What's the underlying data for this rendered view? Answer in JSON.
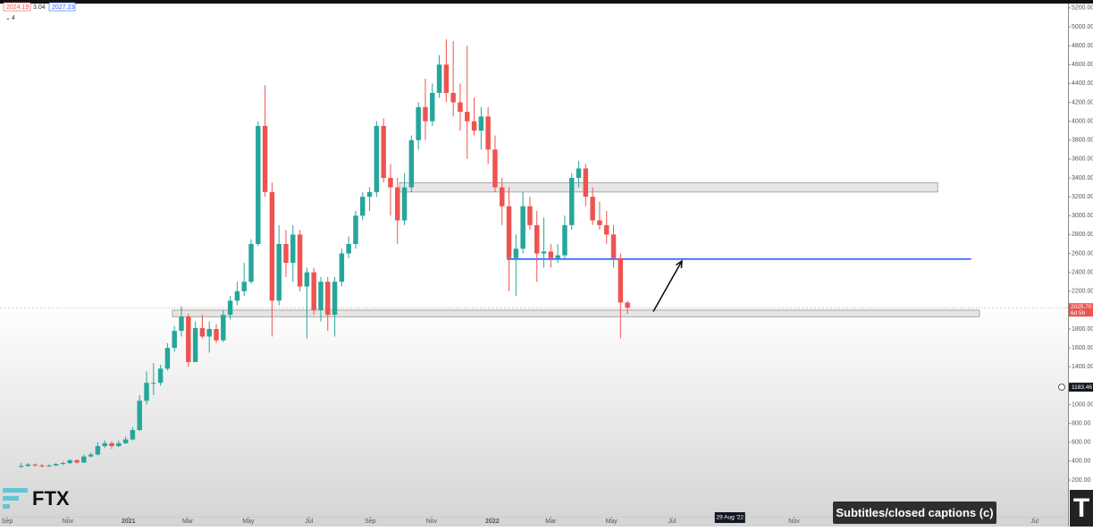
{
  "chart_data": {
    "type": "candlestick",
    "x": [
      2,
      3,
      4,
      5,
      6,
      7,
      8,
      9,
      10,
      11,
      12,
      13,
      14,
      15,
      16,
      17,
      18,
      19,
      20,
      21,
      22,
      23,
      24,
      25,
      26,
      27,
      28,
      29,
      30,
      31,
      32,
      33,
      34,
      35,
      36,
      37,
      38,
      39,
      40,
      41,
      42,
      43,
      44,
      45,
      46,
      47,
      48,
      49,
      50,
      51,
      52,
      53,
      54,
      55,
      56,
      57,
      58,
      59,
      60,
      61,
      62,
      63,
      64,
      65,
      66,
      67,
      68,
      69,
      70,
      71,
      72,
      73,
      74,
      75,
      76,
      77,
      78,
      79,
      80,
      81,
      82,
      83,
      84,
      85,
      86,
      87,
      88,
      89
    ],
    "open": [
      340,
      350,
      365,
      355,
      345,
      355,
      370,
      380,
      410,
      385,
      450,
      470,
      560,
      590,
      560,
      590,
      630,
      730,
      1040,
      1230,
      1230,
      1380,
      1600,
      1780,
      1930,
      1450,
      1810,
      1720,
      1800,
      1680,
      1950,
      2100,
      2200,
      2300,
      2700,
      3950,
      3250,
      2100,
      2700,
      2500,
      2800,
      2250,
      2400,
      2000,
      2300,
      1950,
      2300,
      2600,
      2700,
      3000,
      3200,
      3250,
      3950,
      3400,
      3300,
      2950,
      3300,
      3800,
      4150,
      4000,
      4300,
      4600,
      4300,
      4200,
      4100,
      4000,
      3900,
      4050,
      3700,
      3300,
      3100,
      2550,
      2650,
      3100,
      2900,
      2600,
      2620,
      2550,
      2580,
      2900,
      3400,
      3500,
      3200,
      2950,
      2900,
      2800,
      2550,
      2080
    ],
    "high": [
      380,
      380,
      375,
      370,
      365,
      380,
      395,
      420,
      420,
      470,
      490,
      600,
      620,
      610,
      620,
      660,
      760,
      1100,
      1350,
      1440,
      1420,
      1650,
      1830,
      2040,
      1960,
      1880,
      1950,
      1880,
      1850,
      2000,
      2150,
      2300,
      2500,
      2750,
      4000,
      4380,
      3350,
      2900,
      2850,
      2900,
      2850,
      2450,
      2450,
      2350,
      2350,
      2350,
      2650,
      2780,
      3050,
      3250,
      3300,
      4000,
      4030,
      3550,
      3400,
      3450,
      3850,
      4200,
      4450,
      4400,
      4700,
      4870,
      4850,
      4400,
      4800,
      4250,
      4150,
      4150,
      3850,
      3400,
      3300,
      2800,
      3250,
      3200,
      3050,
      2980,
      2700,
      2700,
      3000,
      3450,
      3580,
      3550,
      3300,
      3150,
      3050,
      2900,
      2600,
      2100
    ],
    "low": [
      330,
      340,
      340,
      335,
      340,
      350,
      360,
      370,
      375,
      380,
      440,
      460,
      540,
      530,
      550,
      580,
      620,
      720,
      1000,
      1100,
      1200,
      1360,
      1560,
      1720,
      1400,
      1450,
      1700,
      1550,
      1650,
      1660,
      1900,
      2050,
      2150,
      2280,
      2680,
      3200,
      1720,
      2050,
      2350,
      2300,
      2200,
      1700,
      1950,
      1880,
      1780,
      1720,
      2250,
      2550,
      2650,
      2950,
      3050,
      3200,
      3350,
      3000,
      2700,
      2900,
      3250,
      3700,
      3800,
      3950,
      4250,
      4200,
      4050,
      3900,
      3600,
      3850,
      3700,
      3550,
      3250,
      2900,
      2200,
      2150,
      2600,
      2850,
      2300,
      2450,
      2450,
      2500,
      2550,
      2850,
      3300,
      3100,
      2900,
      2850,
      2700,
      2450,
      1700,
      1960
    ],
    "close": [
      350,
      365,
      355,
      345,
      355,
      370,
      380,
      410,
      385,
      450,
      470,
      560,
      590,
      560,
      590,
      630,
      730,
      1040,
      1230,
      1230,
      1380,
      1600,
      1780,
      1930,
      1450,
      1810,
      1720,
      1800,
      1680,
      1950,
      2100,
      2200,
      2300,
      2700,
      3950,
      3250,
      2100,
      2700,
      2500,
      2800,
      2250,
      2400,
      2000,
      2300,
      1950,
      2300,
      2600,
      2700,
      3000,
      3200,
      3250,
      3950,
      3400,
      3300,
      2950,
      3300,
      3800,
      4150,
      4000,
      4300,
      4600,
      4300,
      4200,
      4100,
      4000,
      3900,
      4050,
      3700,
      3300,
      3100,
      2550,
      2650,
      3100,
      2900,
      2600,
      2620,
      2550,
      2580,
      2900,
      3400,
      3500,
      3200,
      2950,
      2900,
      2800,
      2550,
      2080,
      2025.7
    ],
    "up_color": "#26a69a",
    "down_color": "#ef5350",
    "grid": false,
    "xlim": [
      -1.03,
      152.2
    ],
    "ylim": [
      -188,
      5284
    ],
    "xticks": [
      {
        "value": 0,
        "label": "Sep"
      },
      {
        "value": 8.7,
        "label": "Nov"
      },
      {
        "value": 17.4,
        "label": "2021"
      },
      {
        "value": 25.9,
        "label": "Mar"
      },
      {
        "value": 34.6,
        "label": "May"
      },
      {
        "value": 43.3,
        "label": "Jul"
      },
      {
        "value": 52.1,
        "label": "Sep"
      },
      {
        "value": 60.9,
        "label": "Nov"
      },
      {
        "value": 69.6,
        "label": "2022"
      },
      {
        "value": 78,
        "label": "Mar"
      },
      {
        "value": 86.7,
        "label": "May"
      },
      {
        "value": 95.4,
        "label": "Jul"
      },
      {
        "value": 112.9,
        "label": "Nov"
      },
      {
        "value": 147.4,
        "label": "Jul"
      }
    ],
    "yticks": [
      {
        "value": 200,
        "label": "200.00"
      },
      {
        "value": 400,
        "label": "400.00"
      },
      {
        "value": 600,
        "label": "600.00"
      },
      {
        "value": 800,
        "label": "800.00"
      },
      {
        "value": 1000,
        "label": "1000.00"
      },
      {
        "value": 1200,
        "label": "1200.00"
      },
      {
        "value": 1400,
        "label": "1400.00"
      },
      {
        "value": 1600,
        "label": "1600.00"
      },
      {
        "value": 1800,
        "label": "1800.00"
      },
      {
        "value": 2200,
        "label": "2200.00"
      },
      {
        "value": 2400,
        "label": "2400.00"
      },
      {
        "value": 2600,
        "label": "2600.00"
      },
      {
        "value": 2800,
        "label": "2800.00"
      },
      {
        "value": 3000,
        "label": "3000.00"
      },
      {
        "value": 3200,
        "label": "3200.00"
      },
      {
        "value": 3400,
        "label": "3400.00"
      },
      {
        "value": 3600,
        "label": "3600.00"
      },
      {
        "value": 3800,
        "label": "3800.00"
      },
      {
        "value": 4000,
        "label": "4000.00"
      },
      {
        "value": 4200,
        "label": "4200.00"
      },
      {
        "value": 4400,
        "label": "4400.00"
      },
      {
        "value": 4600,
        "label": "4600.00"
      },
      {
        "value": 4800,
        "label": "4800.00"
      },
      {
        "value": 5000,
        "label": "5000.00"
      },
      {
        "value": 5200,
        "label": "5200.00"
      }
    ],
    "zones": [
      {
        "x": [
          56.3,
          133.5
        ],
        "y": [
          3250,
          3350
        ]
      },
      {
        "x": [
          23.7,
          139.5
        ],
        "y": [
          1930,
          2000
        ]
      }
    ],
    "lines": [
      {
        "x": [
          71.7,
          138.3
        ],
        "y": 2540,
        "color": "#2962ff"
      }
    ],
    "arrow": {
      "x": [
        92.7,
        96.8
      ],
      "y": [
        1985,
        2520
      ]
    },
    "last_price": {
      "value": 2025.7,
      "label": "2025.70",
      "countdown": "6d 5h"
    },
    "crosshair": {
      "x": 103.7,
      "x_label": "29 Aug '22",
      "y": 1183.46,
      "y_label": "1183.46"
    },
    "ohlc_legend": [
      "2024.19",
      "3.04",
      "2027.23"
    ],
    "indicators": "4"
  },
  "overlay": {
    "logo": "FTX",
    "tooltip": "Subtitles/closed captions (c)"
  }
}
